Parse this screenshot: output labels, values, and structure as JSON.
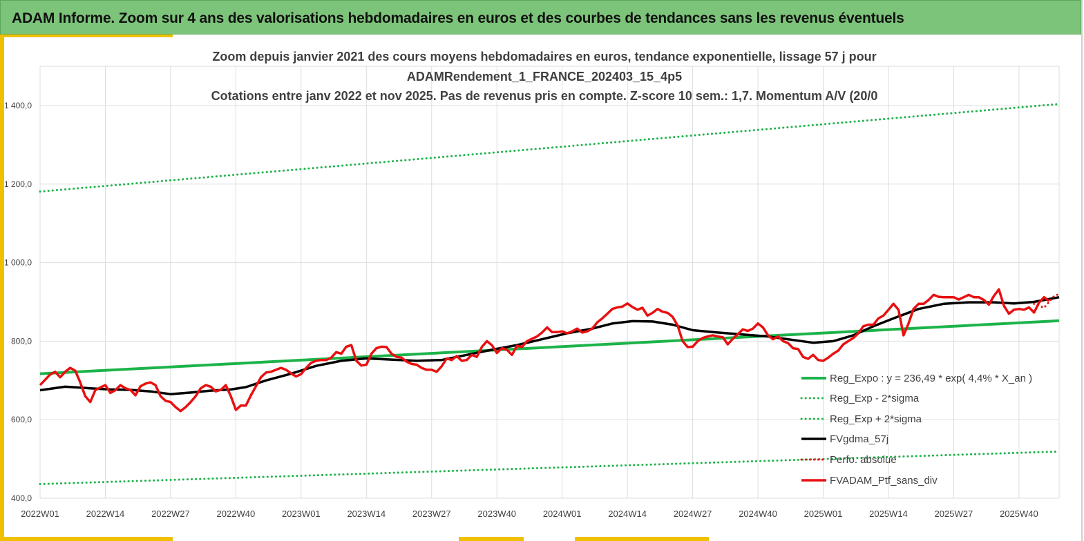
{
  "header": {
    "title": "ADAM Informe. Zoom sur 4 ans des valorisations hebdomadaires en euros et des courbes de tendances sans les revenus éventuels"
  },
  "colors": {
    "banner": "#7cc47a",
    "accent": "#f0c000",
    "green": "#1db34a",
    "red": "#e81010",
    "black": "#000000",
    "grid": "#dddddd"
  },
  "chart_data": {
    "type": "line",
    "title_lines": [
      "Zoom depuis janvier 2021 des cours moyens hebdomadaires  en euros, tendance exponentielle, lissage 57 j pour",
      "ADAMRendement_1_FRANCE_202403_15_4p5",
      "Cotations  entre janv 2022 et nov 2025. Pas de revenus pris en compte. Z-score 10 sem.: 1,7. Momentum A/V (20/0"
    ],
    "ylim": [
      400,
      1500
    ],
    "yticks": [
      {
        "value": 400,
        "label": "400,0"
      },
      {
        "value": 600,
        "label": "600,0"
      },
      {
        "value": 800,
        "label": "800,0"
      },
      {
        "value": 1000,
        "label": "1 000,0"
      },
      {
        "value": 1200,
        "label": "1 200,0"
      },
      {
        "value": 1400,
        "label": "1 400,0"
      }
    ],
    "x_range": [
      0,
      203
    ],
    "xticks": [
      {
        "index": 0,
        "label": "2022W01"
      },
      {
        "index": 13,
        "label": "2022W14"
      },
      {
        "index": 26,
        "label": "2022W27"
      },
      {
        "index": 39,
        "label": "2022W40"
      },
      {
        "index": 52,
        "label": "2023W01"
      },
      {
        "index": 65,
        "label": "2023W14"
      },
      {
        "index": 78,
        "label": "2023W27"
      },
      {
        "index": 91,
        "label": "2023W40"
      },
      {
        "index": 104,
        "label": "2024W01"
      },
      {
        "index": 117,
        "label": "2024W14"
      },
      {
        "index": 130,
        "label": "2024W27"
      },
      {
        "index": 143,
        "label": "2024W40"
      },
      {
        "index": 156,
        "label": "2025W01"
      },
      {
        "index": 169,
        "label": "2025W14"
      },
      {
        "index": 182,
        "label": "2025W27"
      },
      {
        "index": 195,
        "label": "2025W40"
      }
    ],
    "grid": true,
    "legend_position": "bottom-right",
    "series": [
      {
        "name": "Reg_Expo : y = 236,49 * exp( 4,4% *  X_an )",
        "color": "#1db34a",
        "style": "solid",
        "points": [
          [
            0,
            717
          ],
          [
            203,
            852
          ]
        ]
      },
      {
        "name": "Reg_Exp - 2*sigma",
        "color": "#1db34a",
        "style": "dotted",
        "points": [
          [
            0,
            436
          ],
          [
            203,
            519
          ]
        ]
      },
      {
        "name": "Reg_Exp + 2*sigma",
        "color": "#1db34a",
        "style": "dotted",
        "points": [
          [
            0,
            1181
          ],
          [
            203,
            1404
          ]
        ]
      },
      {
        "name": "FVgdma_57j",
        "color": "#000000",
        "style": "solid",
        "points": [
          [
            0,
            675
          ],
          [
            5,
            684
          ],
          [
            10,
            680
          ],
          [
            14,
            677
          ],
          [
            18,
            676
          ],
          [
            22,
            672
          ],
          [
            26,
            665
          ],
          [
            30,
            669
          ],
          [
            34,
            674
          ],
          [
            38,
            677
          ],
          [
            41,
            683
          ],
          [
            45,
            700
          ],
          [
            50,
            717
          ],
          [
            55,
            737
          ],
          [
            60,
            750
          ],
          [
            65,
            756
          ],
          [
            70,
            753
          ],
          [
            75,
            750
          ],
          [
            80,
            752
          ],
          [
            85,
            765
          ],
          [
            90,
            778
          ],
          [
            95,
            790
          ],
          [
            100,
            805
          ],
          [
            105,
            820
          ],
          [
            110,
            832
          ],
          [
            114,
            845
          ],
          [
            118,
            851
          ],
          [
            122,
            850
          ],
          [
            126,
            842
          ],
          [
            130,
            828
          ],
          [
            135,
            822
          ],
          [
            140,
            817
          ],
          [
            145,
            812
          ],
          [
            150,
            803
          ],
          [
            154,
            796
          ],
          [
            158,
            800
          ],
          [
            162,
            815
          ],
          [
            166,
            838
          ],
          [
            170,
            858
          ],
          [
            175,
            882
          ],
          [
            180,
            895
          ],
          [
            185,
            899
          ],
          [
            190,
            899
          ],
          [
            194,
            896
          ],
          [
            198,
            900
          ],
          [
            203,
            912
          ]
        ]
      },
      {
        "name": "Perfo. absolue",
        "color": "#e81010",
        "style": "dotted",
        "points": [
          [
            198,
            895
          ],
          [
            200,
            885
          ],
          [
            202,
            915
          ],
          [
            203,
            920
          ]
        ]
      },
      {
        "name": "FVADAM_Ptf_sans_div",
        "color": "#e81010",
        "style": "solid",
        "points": [
          [
            0,
            688
          ],
          [
            2,
            715
          ],
          [
            3,
            722
          ],
          [
            4,
            708
          ],
          [
            5,
            722
          ],
          [
            6,
            732
          ],
          [
            7,
            725
          ],
          [
            8,
            695
          ],
          [
            9,
            660
          ],
          [
            10,
            645
          ],
          [
            11,
            675
          ],
          [
            12,
            682
          ],
          [
            13,
            688
          ],
          [
            14,
            668
          ],
          [
            15,
            675
          ],
          [
            16,
            688
          ],
          [
            17,
            680
          ],
          [
            18,
            676
          ],
          [
            19,
            662
          ],
          [
            20,
            685
          ],
          [
            21,
            692
          ],
          [
            22,
            695
          ],
          [
            23,
            688
          ],
          [
            24,
            660
          ],
          [
            25,
            648
          ],
          [
            26,
            645
          ],
          [
            27,
            632
          ],
          [
            28,
            622
          ],
          [
            29,
            632
          ],
          [
            30,
            645
          ],
          [
            31,
            660
          ],
          [
            32,
            680
          ],
          [
            33,
            688
          ],
          [
            34,
            684
          ],
          [
            35,
            672
          ],
          [
            36,
            676
          ],
          [
            37,
            688
          ],
          [
            38,
            660
          ],
          [
            39,
            625
          ],
          [
            40,
            636
          ],
          [
            41,
            636
          ],
          [
            42,
            662
          ],
          [
            43,
            685
          ],
          [
            44,
            708
          ],
          [
            45,
            720
          ],
          [
            46,
            722
          ],
          [
            47,
            727
          ],
          [
            48,
            732
          ],
          [
            49,
            727
          ],
          [
            50,
            718
          ],
          [
            51,
            710
          ],
          [
            52,
            716
          ],
          [
            53,
            732
          ],
          [
            54,
            745
          ],
          [
            55,
            750
          ],
          [
            56,
            752
          ],
          [
            57,
            752
          ],
          [
            58,
            758
          ],
          [
            59,
            772
          ],
          [
            60,
            768
          ],
          [
            61,
            786
          ],
          [
            62,
            790
          ],
          [
            63,
            750
          ],
          [
            64,
            738
          ],
          [
            65,
            740
          ],
          [
            66,
            768
          ],
          [
            67,
            782
          ],
          [
            68,
            786
          ],
          [
            69,
            785
          ],
          [
            70,
            768
          ],
          [
            71,
            760
          ],
          [
            72,
            758
          ],
          [
            73,
            748
          ],
          [
            74,
            742
          ],
          [
            75,
            740
          ],
          [
            76,
            732
          ],
          [
            77,
            727
          ],
          [
            78,
            727
          ],
          [
            79,
            722
          ],
          [
            80,
            736
          ],
          [
            81,
            756
          ],
          [
            82,
            752
          ],
          [
            83,
            762
          ],
          [
            84,
            750
          ],
          [
            85,
            752
          ],
          [
            86,
            765
          ],
          [
            87,
            760
          ],
          [
            88,
            785
          ],
          [
            89,
            800
          ],
          [
            90,
            790
          ],
          [
            91,
            770
          ],
          [
            92,
            782
          ],
          [
            93,
            778
          ],
          [
            94,
            765
          ],
          [
            95,
            788
          ],
          [
            96,
            785
          ],
          [
            97,
            800
          ],
          [
            98,
            806
          ],
          [
            99,
            812
          ],
          [
            100,
            822
          ],
          [
            101,
            835
          ],
          [
            102,
            823
          ],
          [
            103,
            823
          ],
          [
            104,
            825
          ],
          [
            105,
            820
          ],
          [
            106,
            825
          ],
          [
            107,
            832
          ],
          [
            108,
            822
          ],
          [
            109,
            825
          ],
          [
            110,
            832
          ],
          [
            111,
            848
          ],
          [
            112,
            858
          ],
          [
            113,
            870
          ],
          [
            114,
            882
          ],
          [
            115,
            886
          ],
          [
            116,
            888
          ],
          [
            117,
            896
          ],
          [
            118,
            887
          ],
          [
            119,
            880
          ],
          [
            120,
            885
          ],
          [
            121,
            865
          ],
          [
            122,
            872
          ],
          [
            123,
            882
          ],
          [
            124,
            875
          ],
          [
            125,
            872
          ],
          [
            126,
            862
          ],
          [
            127,
            840
          ],
          [
            128,
            800
          ],
          [
            129,
            785
          ],
          [
            130,
            786
          ],
          [
            131,
            800
          ],
          [
            132,
            808
          ],
          [
            133,
            812
          ],
          [
            134,
            815
          ],
          [
            135,
            812
          ],
          [
            136,
            810
          ],
          [
            137,
            792
          ],
          [
            138,
            806
          ],
          [
            139,
            818
          ],
          [
            140,
            830
          ],
          [
            141,
            826
          ],
          [
            142,
            832
          ],
          [
            143,
            845
          ],
          [
            144,
            835
          ],
          [
            145,
            815
          ],
          [
            146,
            805
          ],
          [
            147,
            812
          ],
          [
            148,
            800
          ],
          [
            149,
            795
          ],
          [
            150,
            782
          ],
          [
            151,
            780
          ],
          [
            152,
            760
          ],
          [
            153,
            755
          ],
          [
            154,
            765
          ],
          [
            155,
            752
          ],
          [
            156,
            750
          ],
          [
            157,
            758
          ],
          [
            158,
            768
          ],
          [
            159,
            776
          ],
          [
            160,
            792
          ],
          [
            161,
            800
          ],
          [
            162,
            808
          ],
          [
            163,
            820
          ],
          [
            164,
            838
          ],
          [
            165,
            842
          ],
          [
            166,
            842
          ],
          [
            167,
            858
          ],
          [
            168,
            865
          ],
          [
            169,
            880
          ],
          [
            170,
            895
          ],
          [
            171,
            880
          ],
          [
            172,
            815
          ],
          [
            173,
            845
          ],
          [
            174,
            882
          ],
          [
            175,
            895
          ],
          [
            176,
            895
          ],
          [
            177,
            905
          ],
          [
            178,
            918
          ],
          [
            179,
            913
          ],
          [
            180,
            912
          ],
          [
            181,
            912
          ],
          [
            182,
            912
          ],
          [
            183,
            906
          ],
          [
            184,
            912
          ],
          [
            185,
            918
          ],
          [
            186,
            912
          ],
          [
            187,
            912
          ],
          [
            188,
            905
          ],
          [
            189,
            893
          ],
          [
            190,
            915
          ],
          [
            191,
            932
          ],
          [
            192,
            890
          ],
          [
            193,
            870
          ],
          [
            194,
            880
          ],
          [
            195,
            882
          ],
          [
            196,
            880
          ],
          [
            197,
            886
          ],
          [
            198,
            873
          ],
          [
            199,
            898
          ],
          [
            200,
            912
          ],
          [
            201,
            902
          ]
        ]
      }
    ]
  }
}
